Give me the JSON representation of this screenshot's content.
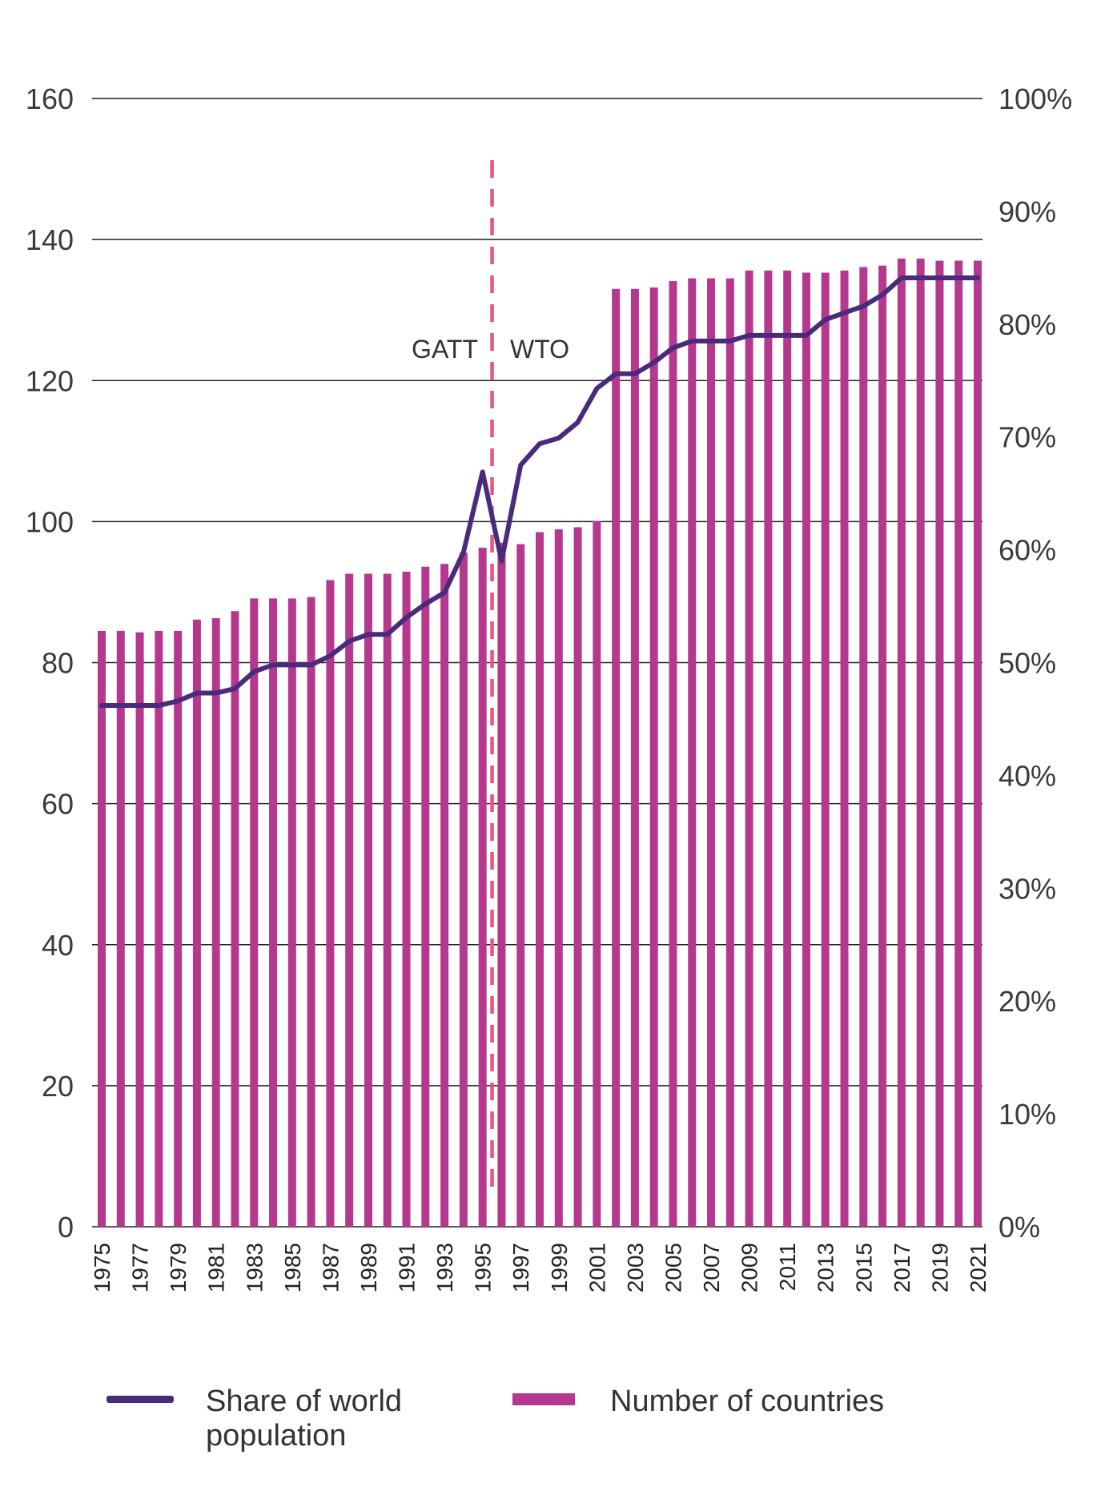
{
  "chart_data": {
    "type": "bar",
    "title": "",
    "xlabel": "",
    "categories": [
      "1975",
      "1976",
      "1977",
      "1978",
      "1979",
      "1980",
      "1981",
      "1982",
      "1983",
      "1984",
      "1985",
      "1986",
      "1987",
      "1988",
      "1989",
      "1990",
      "1991",
      "1992",
      "1993",
      "1994",
      "1995",
      "1996",
      "1997",
      "1998",
      "1999",
      "2000",
      "2001",
      "2002",
      "2003",
      "2004",
      "2005",
      "2006",
      "2007",
      "2008",
      "2009",
      "2010",
      "2011",
      "2012",
      "2013",
      "2014",
      "2015",
      "2016",
      "2017",
      "2018",
      "2019",
      "2020",
      "2021"
    ],
    "x_tick_labels": [
      "1975",
      "1977",
      "1979",
      "1981",
      "1983",
      "1985",
      "1987",
      "1989",
      "1991",
      "1993",
      "1995",
      "1997",
      "1999",
      "2001",
      "2003",
      "2005",
      "2007",
      "2009",
      "2011",
      "2013",
      "2015",
      "2017",
      "2019",
      "2021"
    ],
    "y_left": {
      "ylim": [
        0,
        160
      ],
      "ticks": [
        "0",
        "20",
        "40",
        "60",
        "80",
        "100",
        "120",
        "140",
        "160"
      ]
    },
    "y_right": {
      "ylim": [
        0,
        100
      ],
      "ticks": [
        "0%",
        "10%",
        "20%",
        "30%",
        "40%",
        "50%",
        "60%",
        "70%",
        "80%",
        "90%",
        "100%"
      ]
    },
    "grid": true,
    "legend_position": "bottom",
    "series": [
      {
        "name": "Number of countries",
        "type": "bar",
        "axis": "left",
        "color": "#B5388F",
        "values": [
          84.5,
          84.5,
          84.3,
          84.5,
          84.5,
          86.1,
          86.3,
          87.3,
          89.1,
          89.1,
          89.1,
          89.3,
          91.7,
          92.6,
          92.6,
          92.6,
          92.9,
          93.6,
          94.0,
          95.6,
          96.3,
          97.0,
          96.8,
          98.5,
          98.9,
          99.2,
          100.1,
          133.0,
          133.0,
          133.2,
          134.1,
          134.5,
          134.5,
          134.5,
          135.6,
          135.6,
          135.6,
          135.3,
          135.3,
          135.6,
          136.1,
          136.3,
          137.3,
          137.3,
          137.0,
          137.0,
          137.0
        ]
      },
      {
        "name": "Share of world population",
        "type": "line",
        "axis": "right",
        "color": "#4A2A7A",
        "values": [
          46.2,
          46.2,
          46.2,
          46.2,
          46.6,
          47.3,
          47.3,
          47.7,
          49.2,
          49.8,
          49.8,
          49.8,
          50.6,
          51.9,
          52.5,
          52.5,
          54.0,
          55.2,
          56.2,
          59.8,
          66.9,
          59.0,
          67.5,
          69.4,
          69.9,
          71.3,
          74.3,
          75.6,
          75.6,
          76.6,
          77.9,
          78.5,
          78.5,
          78.5,
          79.0,
          79.0,
          79.0,
          79.0,
          80.4,
          81.0,
          81.6,
          82.6,
          84.1,
          84.1,
          84.1,
          84.1,
          84.1
        ]
      }
    ],
    "annotations": [
      {
        "label": "GATT",
        "x": "1995.5",
        "side": "left"
      },
      {
        "label": "WTO",
        "x": "1995.5",
        "side": "right"
      }
    ]
  },
  "legend": {
    "line_label_1": "Share of world",
    "line_label_2": "population",
    "bar_label": "Number of countries"
  }
}
